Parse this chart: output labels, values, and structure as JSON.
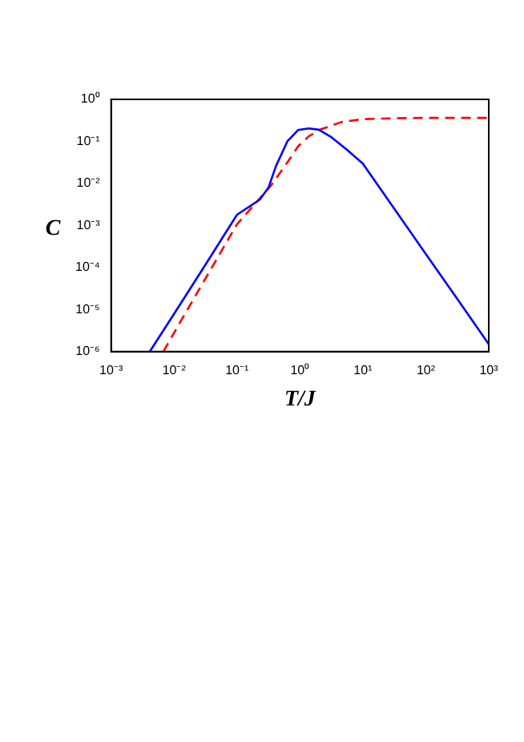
{
  "chart_data": {
    "type": "line",
    "xlabel": "T/J",
    "ylabel": "C",
    "log": "xy",
    "xlim": [
      0.001,
      1000
    ],
    "ylim": [
      1e-06,
      1
    ],
    "xticks": [
      {
        "value": 0.001,
        "label": "10⁻³"
      },
      {
        "value": 0.01,
        "label": "10⁻²"
      },
      {
        "value": 0.1,
        "label": "10⁻¹"
      },
      {
        "value": 1,
        "label": "10⁰"
      },
      {
        "value": 10,
        "label": "10¹"
      },
      {
        "value": 100,
        "label": "10²"
      },
      {
        "value": 1000,
        "label": "10³"
      }
    ],
    "yticks": [
      {
        "value": 1e-06,
        "label": "10⁻⁶"
      },
      {
        "value": 1e-05,
        "label": "10⁻⁵"
      },
      {
        "value": 0.0001,
        "label": "10⁻⁴"
      },
      {
        "value": 0.001,
        "label": "10⁻³"
      },
      {
        "value": 0.01,
        "label": "10⁻²"
      },
      {
        "value": 0.1,
        "label": "10⁻¹"
      },
      {
        "value": 1,
        "label": "10⁰"
      }
    ],
    "grid": false,
    "legend": false,
    "marker": "none",
    "series": [
      {
        "color": "#0000ff",
        "line_style": "solid",
        "x": [
          0.00412,
          0.01,
          0.0316,
          0.1,
          0.229,
          0.316,
          0.417,
          0.631,
          0.933,
          1.38,
          2.0,
          3.16,
          5.62,
          10,
          31.6,
          100,
          316,
          1000
        ],
        "values": [
          1e-06,
          7.9e-06,
          0.000117,
          0.0018,
          0.0041,
          0.0079,
          0.026,
          0.1,
          0.186,
          0.204,
          0.19,
          0.126,
          0.063,
          0.0295,
          0.0025,
          0.00021,
          1.8e-05,
          1.5e-06
        ]
      },
      {
        "color": "#ff0000",
        "line_style": "dashed",
        "x": [
          0.00676,
          0.01,
          0.0316,
          0.1,
          0.347,
          0.631,
          0.933,
          1.38,
          2.09,
          4.57,
          10,
          31.6,
          100,
          1000
        ],
        "values": [
          1e-06,
          2.8e-06,
          5.5e-05,
          0.00107,
          0.0089,
          0.0316,
          0.076,
          0.132,
          0.19,
          0.288,
          0.339,
          0.355,
          0.363,
          0.363
        ]
      }
    ]
  }
}
